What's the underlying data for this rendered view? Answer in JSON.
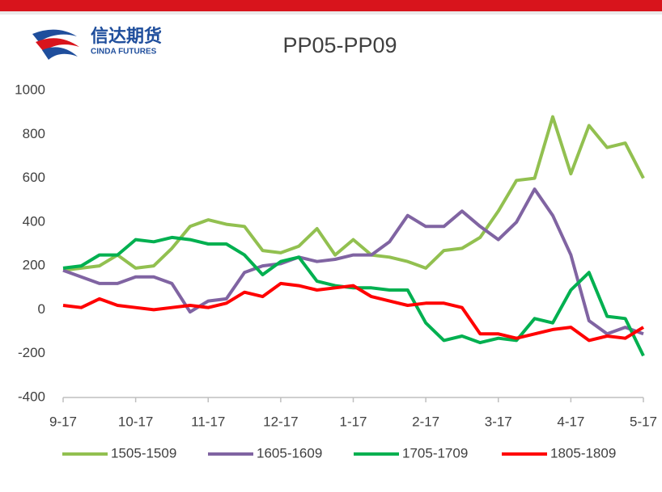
{
  "logo": {
    "name": "信达期货",
    "subtitle": "CINDA FUTURES"
  },
  "chart_data": {
    "type": "line",
    "title": "PP05-PP09",
    "categories": [
      "9-17",
      null,
      null,
      null,
      "10-17",
      null,
      null,
      null,
      "11-17",
      null,
      null,
      null,
      "12-17",
      null,
      null,
      null,
      "1-17",
      null,
      null,
      null,
      "2-17",
      null,
      null,
      null,
      "3-17",
      null,
      null,
      null,
      "4-17",
      null,
      null,
      null,
      "5-17"
    ],
    "series": [
      {
        "name": "1505-1509",
        "color": "#92c050",
        "values": [
          180,
          190,
          200,
          250,
          190,
          200,
          280,
          380,
          410,
          390,
          380,
          270,
          260,
          290,
          370,
          250,
          320,
          250,
          240,
          220,
          190,
          270,
          280,
          330,
          450,
          590,
          600,
          880,
          620,
          840,
          740,
          760,
          600
        ]
      },
      {
        "name": "1605-1609",
        "color": "#8064a2",
        "values": [
          180,
          150,
          120,
          120,
          150,
          150,
          120,
          -10,
          40,
          50,
          170,
          200,
          210,
          240,
          220,
          230,
          250,
          250,
          310,
          430,
          380,
          380,
          450,
          380,
          320,
          400,
          550,
          430,
          250,
          -50,
          -110,
          -80,
          -110
        ]
      },
      {
        "name": "1705-1709",
        "color": "#00b050",
        "values": [
          190,
          200,
          250,
          250,
          320,
          310,
          330,
          320,
          300,
          300,
          250,
          160,
          220,
          240,
          130,
          110,
          100,
          100,
          90,
          90,
          -60,
          -140,
          -120,
          -150,
          -130,
          -140,
          -40,
          -60,
          90,
          170,
          -30,
          -40,
          -210
        ]
      },
      {
        "name": "1805-1809",
        "color": "#ff0000",
        "values": [
          20,
          10,
          50,
          20,
          10,
          0,
          10,
          20,
          10,
          30,
          80,
          60,
          120,
          110,
          90,
          100,
          110,
          60,
          40,
          20,
          30,
          30,
          10,
          -110,
          -110,
          -130,
          -110,
          -90,
          -80,
          -140,
          -120,
          -130,
          -80
        ]
      }
    ],
    "ylim": [
      -400,
      1000
    ],
    "yticks": [
      -400,
      -200,
      0,
      200,
      400,
      600,
      800,
      1000
    ],
    "grid": false,
    "legend": "bottom"
  }
}
